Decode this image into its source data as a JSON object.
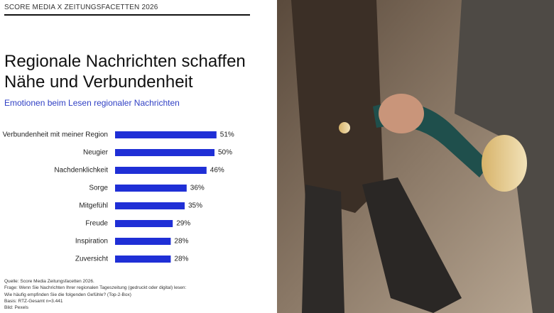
{
  "header": "SCORE MEDIA X ZEITUNGSFACETTEN 2026",
  "chart_data": {
    "type": "bar",
    "title": "Regionale Nachrichten schaffen Nähe und Verbundenheit",
    "subtitle": "Emotionen beim Lesen regionaler Nachrichten",
    "categories": [
      "Verbundenheit mit meiner Region",
      "Neugier",
      "Nachdenklichkeit",
      "Sorge",
      "Mitgefühl",
      "Freude",
      "Inspiration",
      "Zuversicht"
    ],
    "values": [
      51,
      50,
      46,
      36,
      35,
      29,
      28,
      28
    ],
    "value_labels": [
      "51%",
      "50%",
      "46%",
      "36%",
      "35%",
      "29%",
      "28%",
      "28%"
    ],
    "color": "#1f2fd6"
  },
  "notes": [
    "Quelle: Score Media Zeitungsfacetten 2026.",
    "Frage: Wenn Sie Nachrichten Ihrer regionalen Tageszeitung (gedruckt oder digital) lesen:",
    "Wie häufig empfinden Sie die folgenden Gefühle? (Top-2-Box)",
    "Basis: RTZ-Gesamt n=3.441",
    "Bild: Pexels"
  ]
}
